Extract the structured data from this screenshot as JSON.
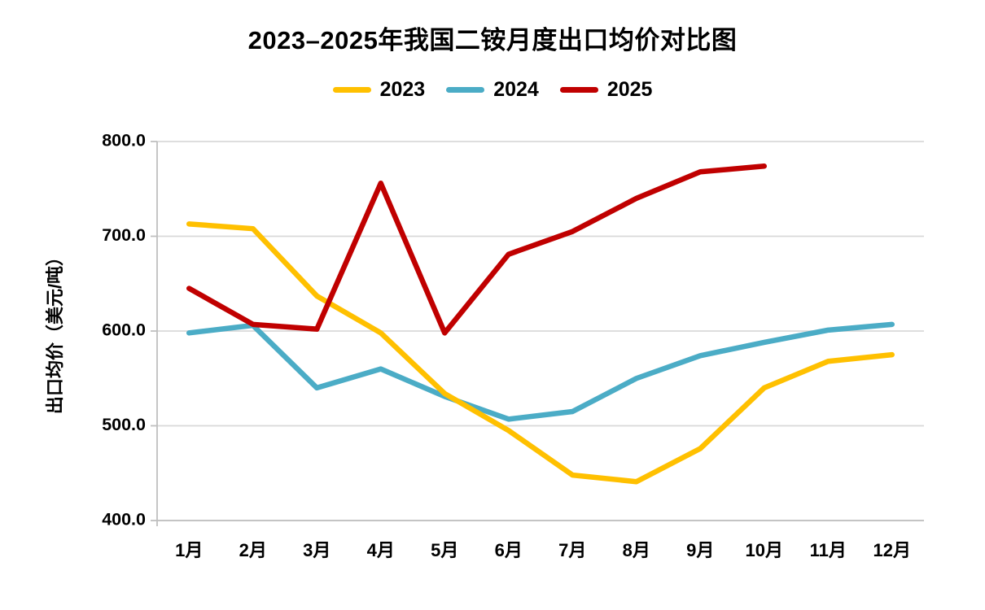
{
  "title": "2023–2025年我国二铵月度出口均价对比图",
  "legend": [
    {
      "label": "2023",
      "color": "#FFC000"
    },
    {
      "label": "2024",
      "color": "#4BACC6"
    },
    {
      "label": "2025",
      "color": "#C00000"
    }
  ],
  "chart_data": {
    "type": "line",
    "title": "2023–2025年我国二铵月度出口均价对比图",
    "xlabel": "",
    "ylabel": "出口均价（美元/吨）",
    "categories": [
      "1月",
      "2月",
      "3月",
      "4月",
      "5月",
      "6月",
      "7月",
      "8月",
      "9月",
      "10月",
      "11月",
      "12月"
    ],
    "series": [
      {
        "name": "2023",
        "color": "#FFC000",
        "values": [
          713,
          708,
          637,
          598,
          534,
          495,
          448,
          441,
          476,
          540,
          568,
          575
        ]
      },
      {
        "name": "2024",
        "color": "#4BACC6",
        "values": [
          598,
          606,
          540,
          560,
          531,
          507,
          515,
          550,
          574,
          588,
          601,
          607
        ]
      },
      {
        "name": "2025",
        "color": "#C00000",
        "values": [
          645,
          607,
          602,
          756,
          598,
          681,
          705,
          740,
          768,
          774,
          null,
          null
        ]
      }
    ],
    "ylim": [
      400,
      800
    ],
    "ytick_step": 100,
    "ytick_labels": [
      "400.0",
      "500.0",
      "600.0",
      "700.0",
      "800.0"
    ],
    "grid": true,
    "legend_position": "top",
    "draw_order": [
      1,
      0,
      2
    ],
    "grid_color": "#D9D9D9",
    "axis_color": "#BFBFBF"
  }
}
